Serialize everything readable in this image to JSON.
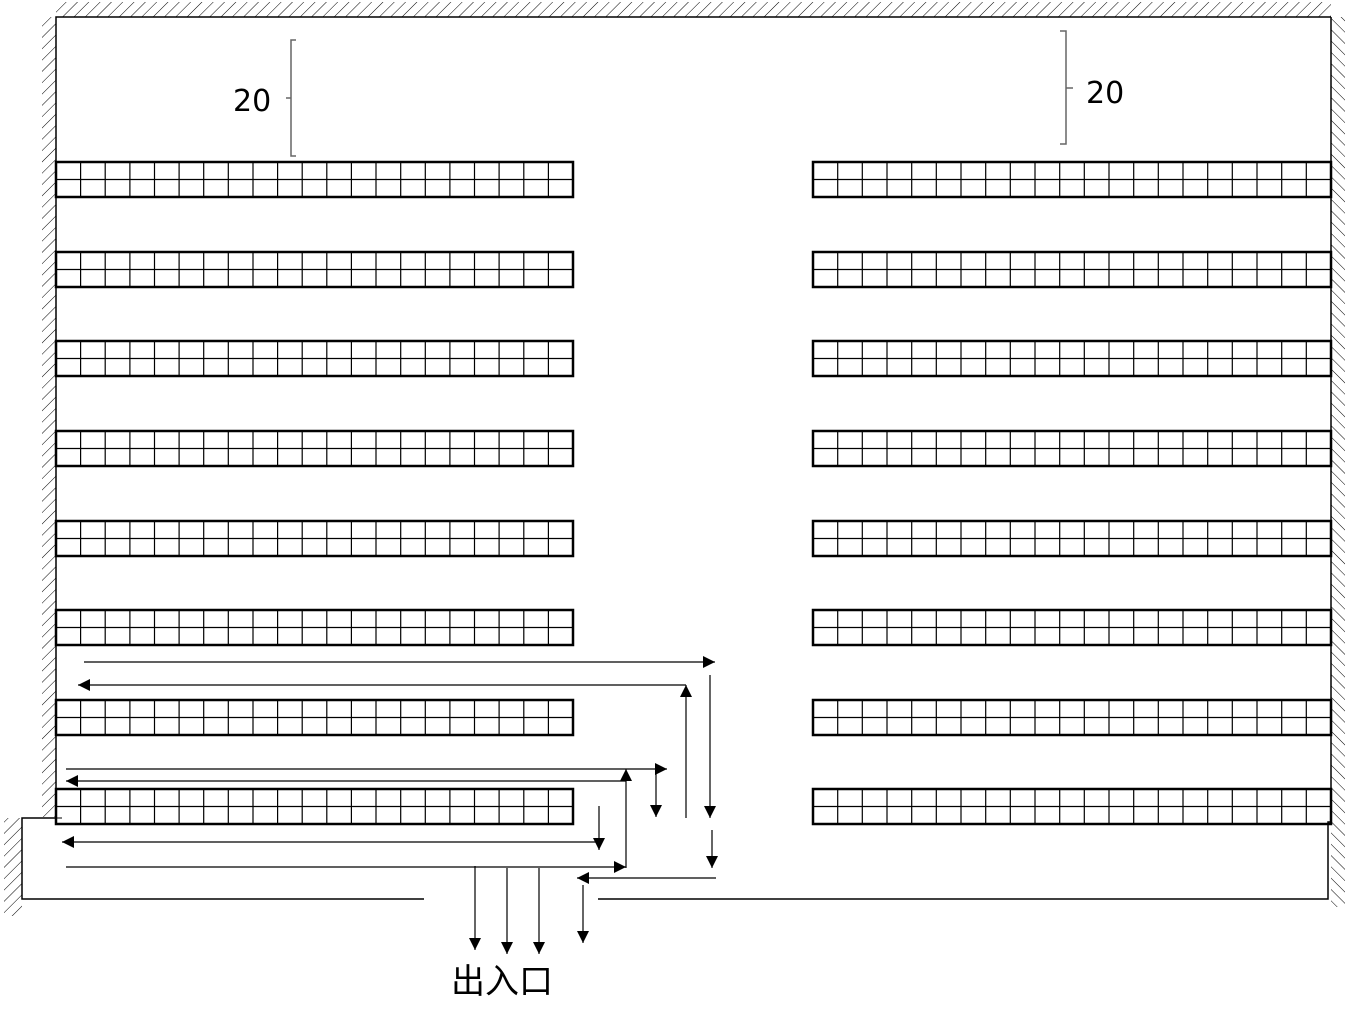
{
  "dimensions": {
    "left_gap_label": "20",
    "right_gap_label": "20"
  },
  "entrance_label": "出入口",
  "colors": {
    "line": "#000000",
    "bracket": "#666666",
    "background": "#ffffff"
  }
}
